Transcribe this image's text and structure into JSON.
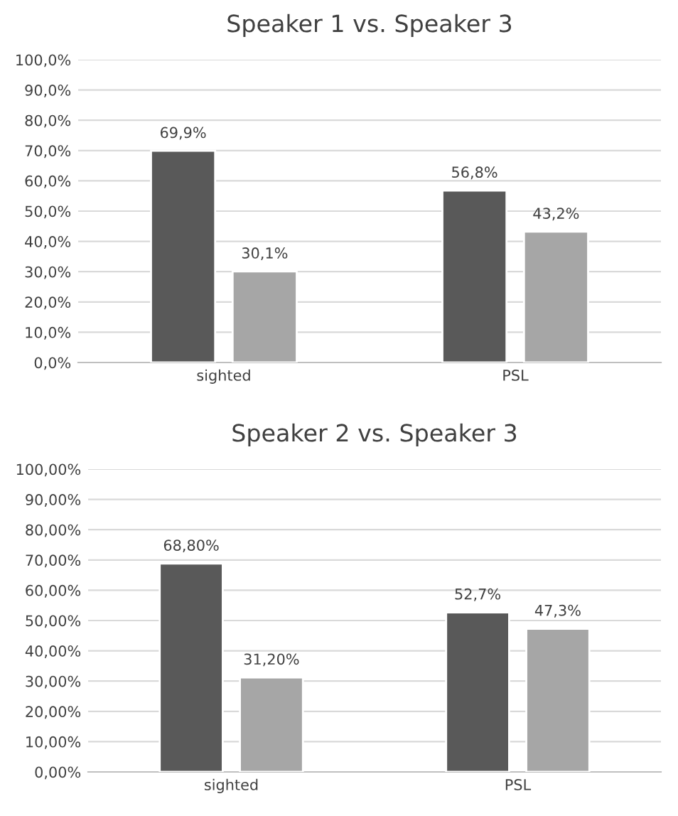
{
  "chart_data": [
    {
      "type": "bar",
      "title": "Speaker 1 vs. Speaker 3",
      "categories": [
        "sighted",
        "PSL"
      ],
      "series": [
        {
          "color": "#595959",
          "values": [
            69.9,
            56.8
          ],
          "value_labels": [
            "69,9%",
            "56,8%"
          ]
        },
        {
          "color": "#a6a6a6",
          "values": [
            30.1,
            43.2
          ],
          "value_labels": [
            "30,1%",
            "43,2%"
          ]
        }
      ],
      "ylim": [
        0,
        100
      ],
      "yticks": [
        {
          "value": 0,
          "label": "0,0%"
        },
        {
          "value": 10,
          "label": "10,0%"
        },
        {
          "value": 20,
          "label": "20,0%"
        },
        {
          "value": 30,
          "label": "30,0%"
        },
        {
          "value": 40,
          "label": "40,0%"
        },
        {
          "value": 50,
          "label": "50,0%"
        },
        {
          "value": 60,
          "label": "60,0%"
        },
        {
          "value": 70,
          "label": "70,0%"
        },
        {
          "value": 80,
          "label": "80,0%"
        },
        {
          "value": 90,
          "label": "90,0%"
        },
        {
          "value": 100,
          "label": "100,0%"
        }
      ],
      "grid": "y"
    },
    {
      "type": "bar",
      "title": "Speaker 2 vs. Speaker 3",
      "categories": [
        "sighted",
        "PSL"
      ],
      "series": [
        {
          "color": "#595959",
          "values": [
            68.8,
            52.7
          ],
          "value_labels": [
            "68,80%",
            "52,7%"
          ]
        },
        {
          "color": "#a6a6a6",
          "values": [
            31.2,
            47.3
          ],
          "value_labels": [
            "31,20%",
            "47,3%"
          ]
        }
      ],
      "ylim": [
        0,
        100
      ],
      "yticks": [
        {
          "value": 0,
          "label": "0,00%"
        },
        {
          "value": 10,
          "label": "10,00%"
        },
        {
          "value": 20,
          "label": "20,00%"
        },
        {
          "value": 30,
          "label": "30,00%"
        },
        {
          "value": 40,
          "label": "40,00%"
        },
        {
          "value": 50,
          "label": "50,00%"
        },
        {
          "value": 60,
          "label": "60,00%"
        },
        {
          "value": 70,
          "label": "70,00%"
        },
        {
          "value": 80,
          "label": "80,00%"
        },
        {
          "value": 90,
          "label": "90,00%"
        },
        {
          "value": 100,
          "label": "100,00%"
        }
      ],
      "grid": "y"
    }
  ]
}
